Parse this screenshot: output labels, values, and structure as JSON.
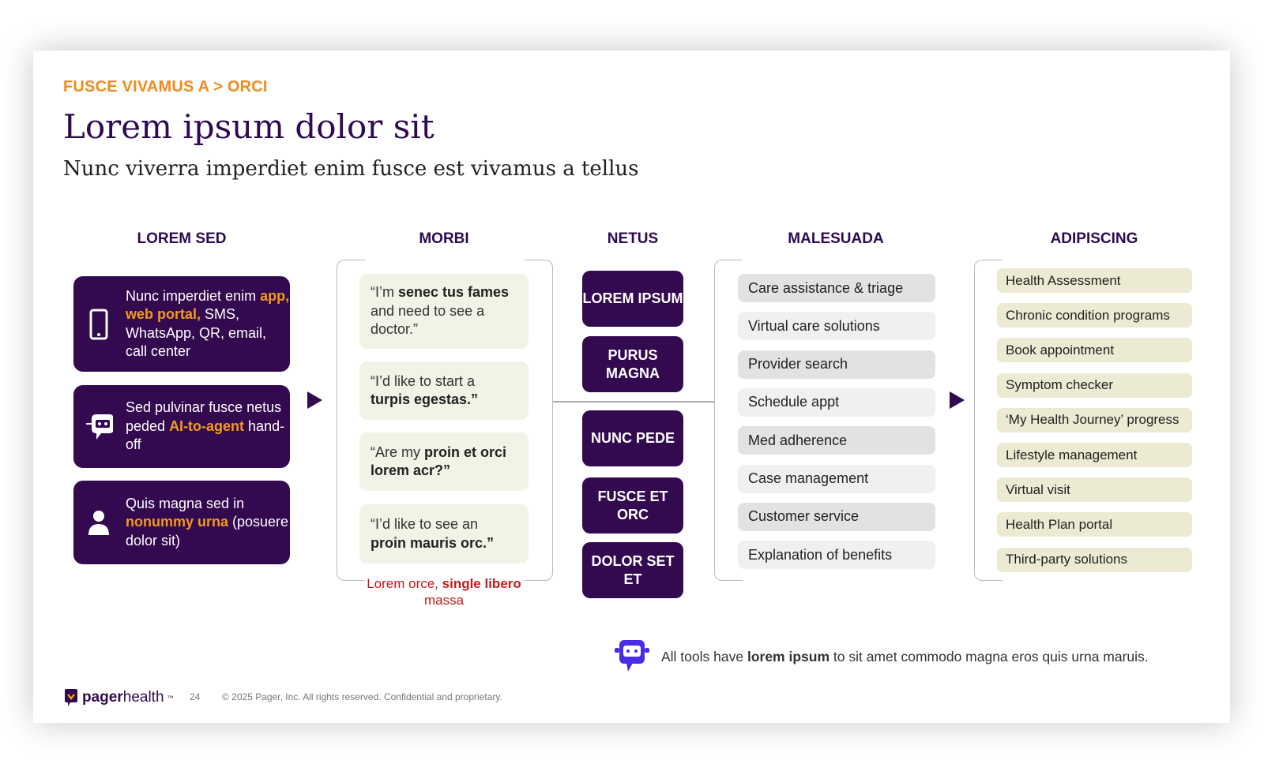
{
  "breadcrumb": "FUSCE VIVAMUS A > ORCI",
  "title": "Lorem ipsum dolor sit",
  "subtitle": "Nunc viverra imperdiet enim fusce est vivamus a tellus",
  "columns": {
    "c1": "LOREM SED",
    "c2": "MORBI",
    "c3": "NETUS",
    "c4": "MALESUADA",
    "c5": "ADIPISCING"
  },
  "channels": [
    {
      "icon": "mobile-phone-icon",
      "a": "Nunc imperdiet enim ",
      "b": "app, web portal",
      ",": ",",
      "c": " SMS, WhatsApp, QR, email, call center"
    },
    {
      "icon": "robot-chat-icon",
      "a": "Sed pulvinar fusce netus peded ",
      "b": "AI-to-agent",
      "c": " hand-off"
    },
    {
      "icon": "person-icon",
      "a": "Quis magna sed in ",
      "b": "nonummy urna",
      "c": " (posuere dolor sit)"
    }
  ],
  "quotes": [
    {
      "a": "“I’m ",
      "b": "senec tus fames",
      "c": " and need to see a doctor.”"
    },
    {
      "a": "“I’d like to start a ",
      "b": "turpis egestas.”",
      "c": ""
    },
    {
      "a": "“Are my ",
      "b": "proin et orci lorem acr?”",
      "c": ""
    },
    {
      "a": "“I’d like to see an ",
      "b": "proin mauris orc.”",
      "c": ""
    }
  ],
  "caption": {
    "a": "Lorem orce, ",
    "b": "single libero",
    "c": " massa"
  },
  "netus": [
    "LOREM IPSUM",
    "PURUS MAGNA",
    "NUNC PEDE",
    "FUSCE ET ORC",
    "DOLOR SET ET"
  ],
  "malesuada": [
    "Care assistance & triage",
    "Virtual care solutions",
    "Provider search",
    "Schedule appt",
    "Med adherence",
    "Case management",
    "Customer service",
    "Explanation of benefits"
  ],
  "adipiscing": [
    "Health Assessment",
    "Chronic condition programs",
    "Book appointment",
    "Symptom checker",
    "‘My Health Journey’ progress",
    "Lifestyle management",
    "Virtual visit",
    "Health Plan portal",
    "Third-party solutions"
  ],
  "note": {
    "a": "All tools have ",
    "b": "lorem ipsum",
    "c": " to sit amet commodo magna eros quis urna maruis."
  },
  "footer": {
    "logo_a": "pager",
    "logo_b": "health",
    "tm": "™",
    "page": "24",
    "copyright": "© 2025 Pager, Inc. All rights reserved. Confidential and proprietary."
  },
  "colors": {
    "purple": "#33094f",
    "orange": "#f39a1e",
    "red": "#c41a1a",
    "quote_bg": "#f3f2e6",
    "adip_bg": "#ecead2",
    "robot": "#4a2ee6"
  }
}
